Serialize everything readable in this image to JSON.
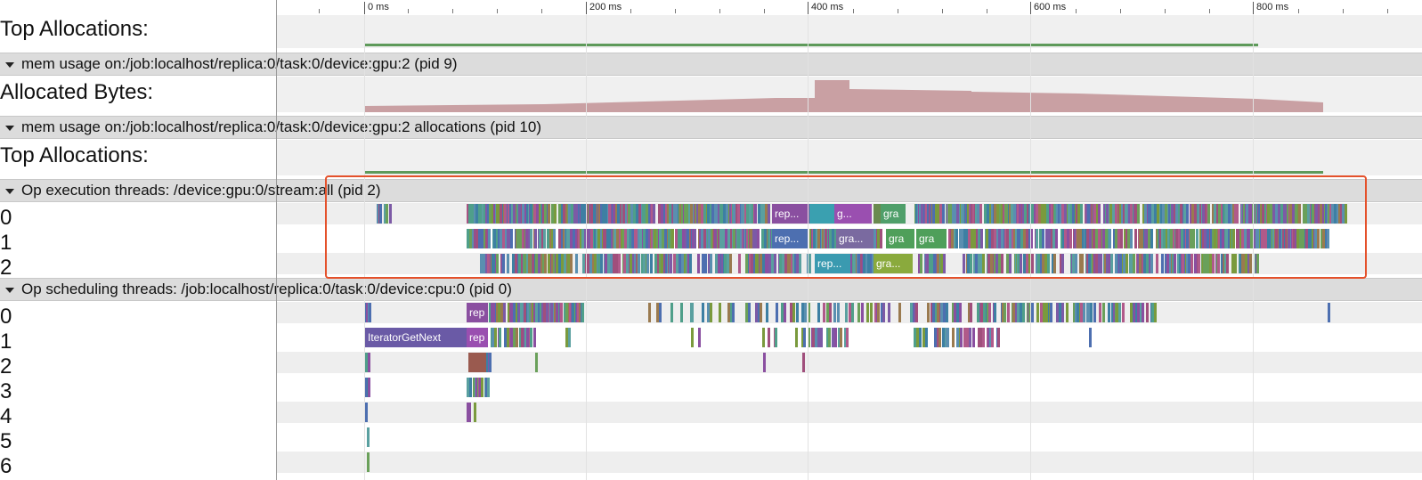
{
  "ruler": {
    "ticks": [
      "0 ms",
      "200 ms",
      "400 ms",
      "600 ms",
      "800 ms"
    ]
  },
  "rows": {
    "top_alloc_1": "Top Allocations:",
    "allocated_bytes": "Allocated Bytes:",
    "top_alloc_2": "Top Allocations:"
  },
  "groups": {
    "mem_usage": "mem usage on:/job:localhost/replica:0/task:0/device:gpu:2 (pid 9)",
    "mem_alloc": "mem usage on:/job:localhost/replica:0/task:0/device:gpu:2 allocations (pid 10)",
    "op_exec": "Op execution threads: /device:gpu:0/stream:all (pid 2)",
    "op_sched": "Op scheduling threads: /job:localhost/replica:0/task:0/device:cpu:0 (pid 0)"
  },
  "exec_threads": [
    "0",
    "1",
    "2"
  ],
  "sched_threads": [
    "0",
    "1",
    "2",
    "3",
    "4",
    "5",
    "6"
  ],
  "slice_labels": {
    "exec0": [
      "rep...",
      "g...",
      "gra"
    ],
    "exec1": [
      "rep...",
      "gra...",
      "gra",
      "gra"
    ],
    "exec2": [
      "rep...",
      "gra..."
    ],
    "sched0": [
      "rep"
    ],
    "sched1": [
      "IteratorGetNext",
      "rep"
    ]
  },
  "colors": {
    "highlight": "#e4512b",
    "allocated_area": "#c9a0a3",
    "allocation_line": "#5e9a5a"
  }
}
